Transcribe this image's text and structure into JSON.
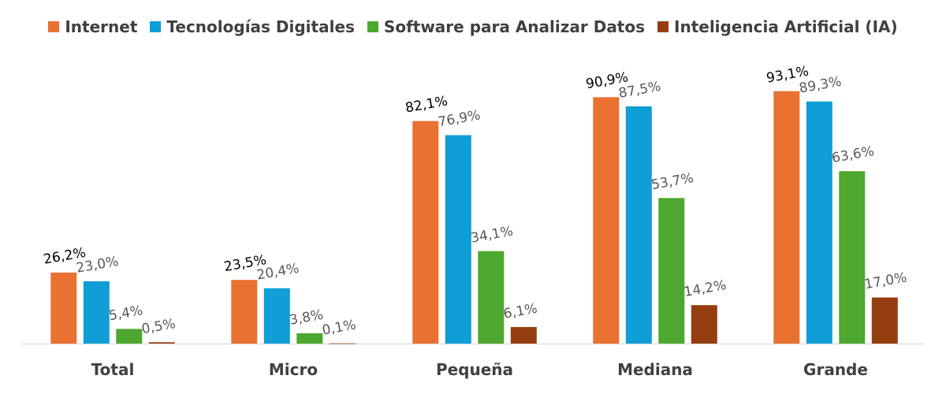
{
  "chart_data": {
    "type": "bar",
    "title": "",
    "xlabel": "",
    "ylabel": "",
    "ylim": [
      0,
      100
    ],
    "grid": false,
    "legend_position": "top",
    "categories": [
      "Total",
      "Micro",
      "Pequeña",
      "Mediana",
      "Grande"
    ],
    "series": [
      {
        "name": "Internet",
        "color": "#E97132",
        "values": [
          26.2,
          23.5,
          82.1,
          90.9,
          93.1
        ],
        "labels": [
          "26,2%",
          "23,5%",
          "82,1%",
          "90,9%",
          "93,1%"
        ]
      },
      {
        "name": "Tecnologías Digitales",
        "color": "#0F9ED5",
        "values": [
          23.0,
          20.4,
          76.9,
          87.5,
          89.3
        ],
        "labels": [
          "23,0%",
          "20,4%",
          "76,9%",
          "87,5%",
          "89,3%"
        ]
      },
      {
        "name": "Software para Analizar Datos",
        "color": "#4EA72E",
        "values": [
          5.4,
          3.8,
          34.1,
          53.7,
          63.6
        ],
        "labels": [
          "5,4%",
          "3,8%",
          "34,1%",
          "53,7%",
          "63,6%"
        ]
      },
      {
        "name": "Inteligencia Artificial (IA)",
        "color": "#953F10",
        "values": [
          0.5,
          0.1,
          6.1,
          14.2,
          17.0
        ],
        "labels": [
          "0,5%",
          "0,1%",
          "6,1%",
          "14,2%",
          "17,0%"
        ]
      }
    ]
  }
}
